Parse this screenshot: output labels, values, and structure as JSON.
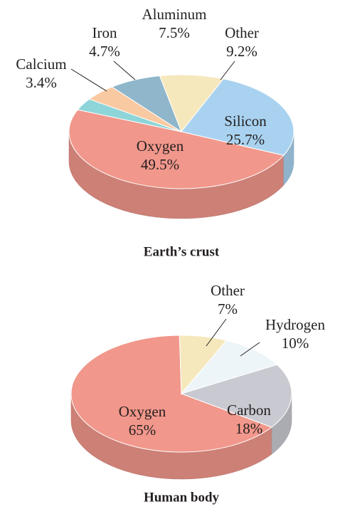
{
  "chart_data": [
    {
      "type": "pie",
      "title": "Earth’s crust",
      "categories": [
        "Oxygen",
        "Calcium",
        "Iron",
        "Aluminum",
        "Other",
        "Silicon"
      ],
      "values": [
        49.5,
        3.4,
        4.7,
        7.5,
        9.2,
        25.7
      ],
      "value_labels": [
        "49.5%",
        "3.4%",
        "4.7%",
        "7.5%",
        "9.2%",
        "25.7%"
      ],
      "colors": [
        "#f1978b",
        "#8ed5d9",
        "#f9c9a1",
        "#8fb6ca",
        "#f6e8bd",
        "#a9d2f0"
      ]
    },
    {
      "type": "pie",
      "title": "Human body",
      "categories": [
        "Oxygen",
        "Other",
        "Hydrogen",
        "Carbon"
      ],
      "values": [
        65,
        7,
        10,
        18
      ],
      "value_labels": [
        "65%",
        "7%",
        "10%",
        "18%"
      ],
      "colors": [
        "#f1978b",
        "#f6e8bd",
        "#eef5f9",
        "#c9c9d1"
      ]
    }
  ]
}
